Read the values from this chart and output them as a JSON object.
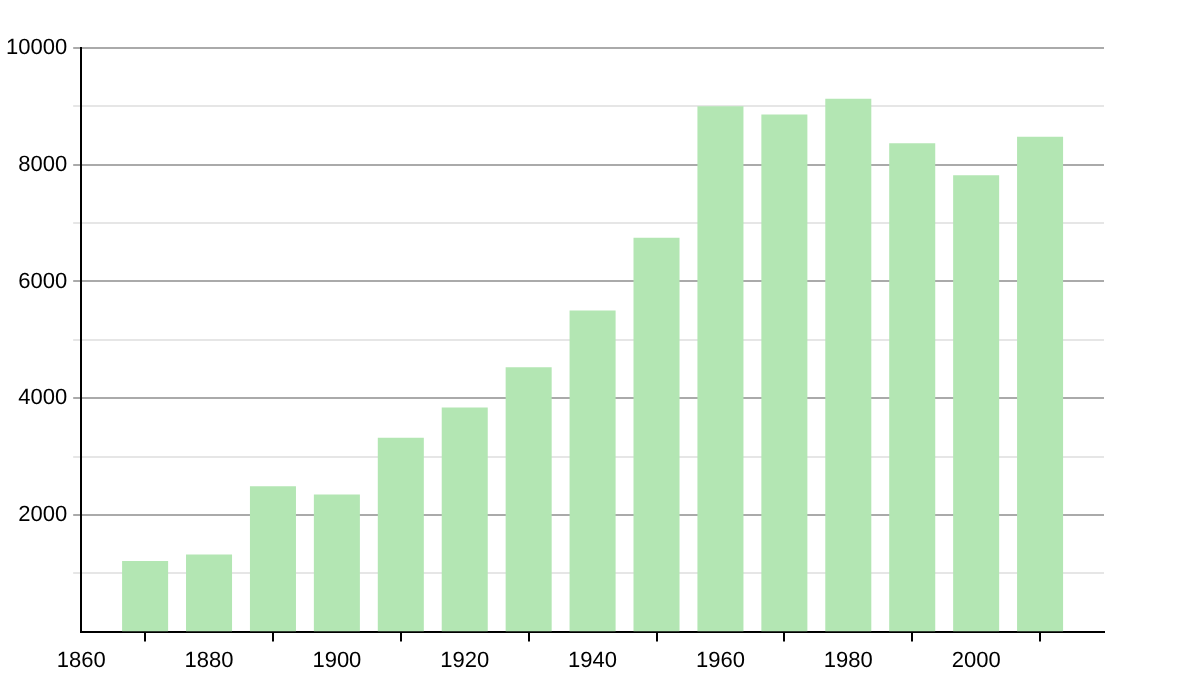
{
  "chart_data": {
    "type": "bar",
    "x": [
      1870,
      1880,
      1890,
      1900,
      1910,
      1920,
      1930,
      1940,
      1950,
      1960,
      1970,
      1980,
      1990,
      2000,
      2010
    ],
    "values": [
      1210,
      1320,
      2490,
      2350,
      3320,
      3840,
      4530,
      5500,
      6750,
      9000,
      8860,
      9130,
      8370,
      7820,
      8480
    ],
    "color": "#b3e6b3",
    "xlim": [
      1860,
      2020
    ],
    "xticks": [
      1860,
      1880,
      1900,
      1920,
      1940,
      1960,
      1980,
      2000
    ],
    "ylim": [
      0,
      10000
    ],
    "yticks": [
      {
        "value": 1000,
        "label": null
      },
      2000,
      {
        "value": 3000,
        "label": null
      },
      4000,
      {
        "value": 5000,
        "label": null
      },
      6000,
      {
        "value": 7000,
        "label": null
      },
      8000,
      {
        "value": 9000,
        "label": null
      },
      10000
    ],
    "grid": "y",
    "legend": false
  }
}
